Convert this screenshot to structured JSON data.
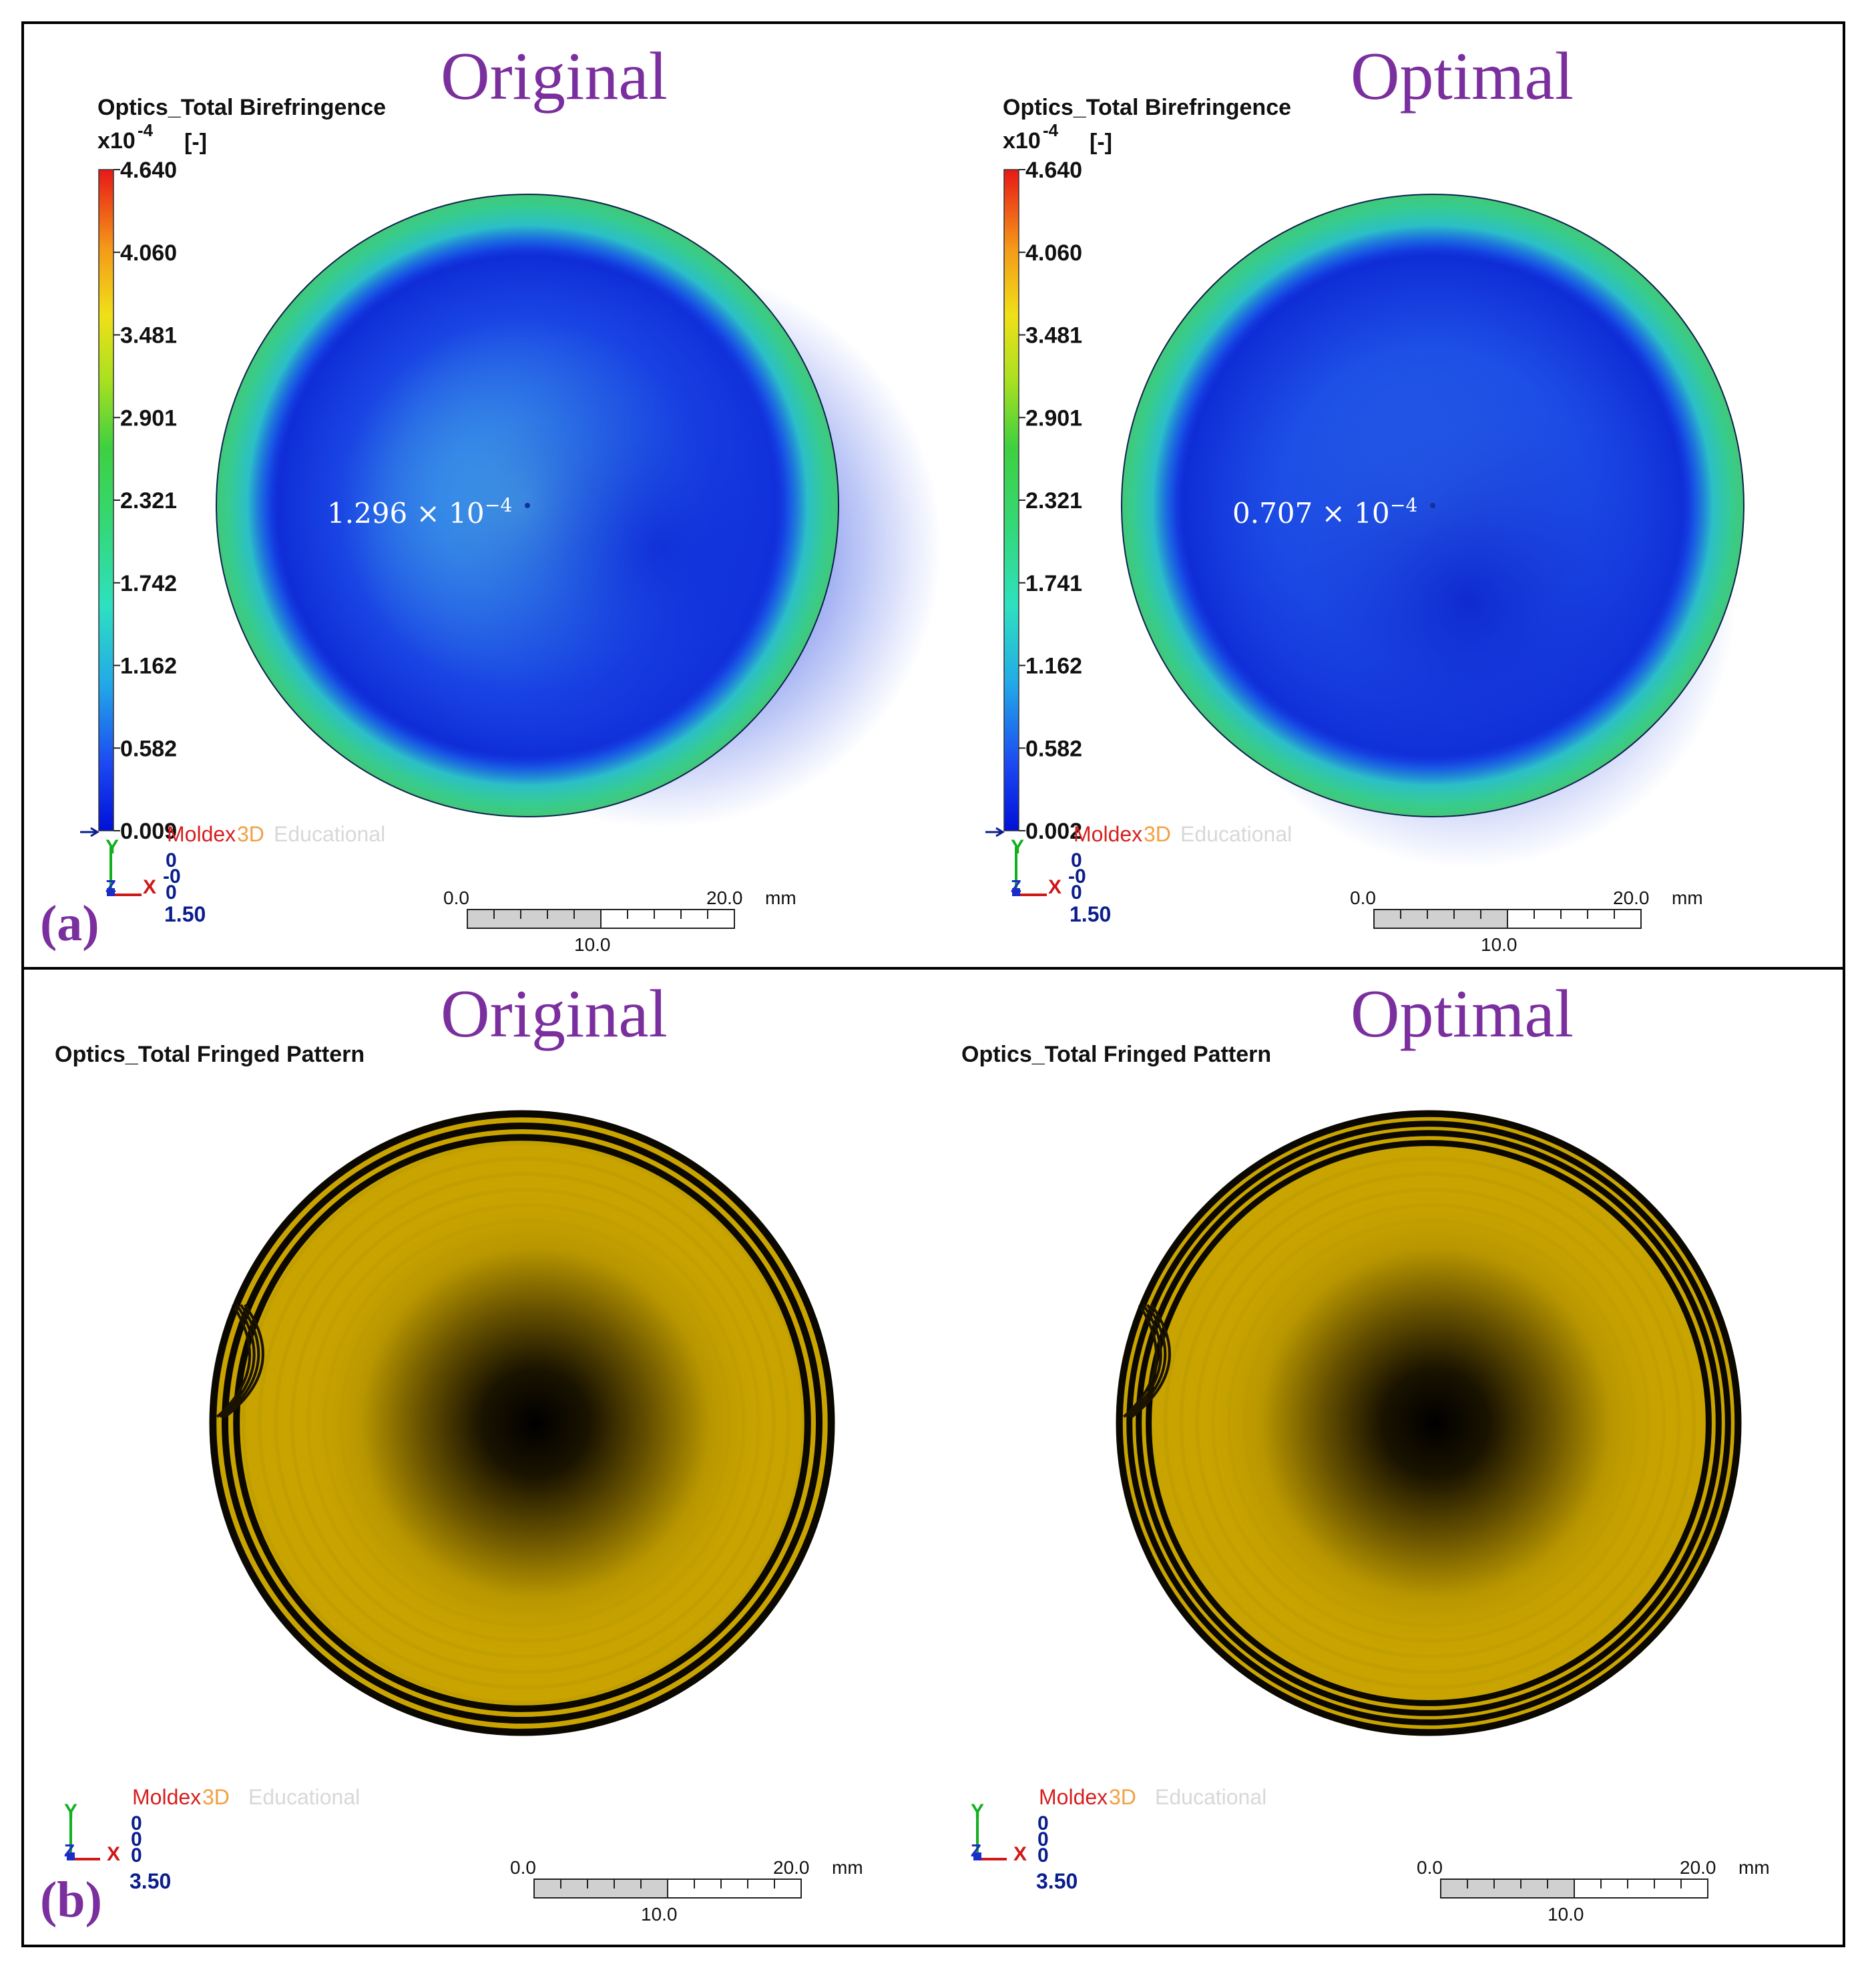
{
  "panels": {
    "a": {
      "label": "(a)",
      "sub": [
        {
          "heading": "Original",
          "quantity": "Optics_Total Birefringence",
          "units_exp": "x10",
          "units_pow": "-4",
          "units_unit": "[-]",
          "ticks": [
            "4.640",
            "4.060",
            "3.481",
            "2.901",
            "2.321",
            "1.742",
            "1.162",
            "0.582",
            "0.009"
          ],
          "center_value": "1.296 × 10",
          "center_exp": "−4",
          "logo_a": "Moldex",
          "logo_b": "3D",
          "logo_c": "Educational",
          "axis": {
            "y": "Y",
            "z": "Z",
            "x": "X",
            "values": [
              "0",
              "-0",
              "0"
            ],
            "scale": "1.50"
          },
          "scalebar": {
            "start": "0.0",
            "end": "20.0",
            "unit": "mm",
            "mid": "10.0"
          }
        },
        {
          "heading": "Optimal",
          "quantity": "Optics_Total Birefringence",
          "units_exp": "x10",
          "units_pow": "-4",
          "units_unit": "[-]",
          "ticks": [
            "4.640",
            "4.060",
            "3.481",
            "2.901",
            "2.321",
            "1.741",
            "1.162",
            "0.582",
            "0.002"
          ],
          "center_value": "0.707 × 10",
          "center_exp": "−4",
          "logo_a": "Moldex",
          "logo_b": "3D",
          "logo_c": "Educational",
          "axis": {
            "y": "Y",
            "z": "Z",
            "x": "X",
            "values": [
              "0",
              "-0",
              "0"
            ],
            "scale": "1.50"
          },
          "scalebar": {
            "start": "0.0",
            "end": "20.0",
            "unit": "mm",
            "mid": "10.0"
          }
        }
      ]
    },
    "b": {
      "label": "(b)",
      "sub": [
        {
          "heading": "Original",
          "quantity": "Optics_Total Fringed Pattern",
          "logo_a": "Moldex",
          "logo_b": "3D",
          "logo_c": "Educational",
          "axis": {
            "y": "Y",
            "z": "Z",
            "x": "X",
            "values": [
              "0",
              "0",
              "0"
            ],
            "scale": "3.50"
          },
          "scalebar": {
            "start": "0.0",
            "end": "20.0",
            "unit": "mm",
            "mid": "10.0"
          }
        },
        {
          "heading": "Optimal",
          "quantity": "Optics_Total Fringed Pattern",
          "logo_a": "Moldex",
          "logo_b": "3D",
          "logo_c": "Educational",
          "axis": {
            "y": "Y",
            "z": "Z",
            "x": "X",
            "values": [
              "0",
              "0",
              "0"
            ],
            "scale": "3.50"
          },
          "scalebar": {
            "start": "0.0",
            "end": "20.0",
            "unit": "mm",
            "mid": "10.0"
          }
        }
      ]
    }
  },
  "colors": {
    "heading": "#7b2f9e",
    "fringe_gold": "#c9a400",
    "fringe_dark": "#0b0800",
    "birefringence_blue": "#1840e6",
    "birefringence_green": "#3cc98c",
    "logo_red": "#d61f1f",
    "logo_orange": "#f0a040",
    "axis_blue": "#0a1e8c"
  }
}
